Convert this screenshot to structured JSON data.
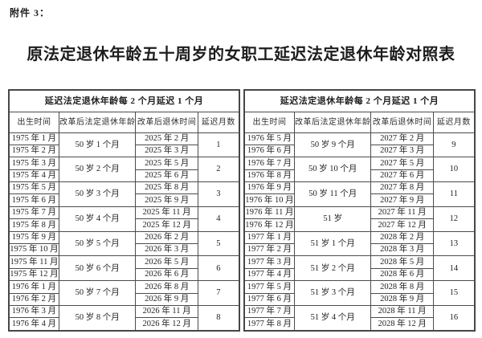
{
  "attachment_label": "附件 3：",
  "title": "原法定退休年龄五十周岁的女职工延迟法定退休年龄对照表",
  "table": {
    "span_header": "延迟法定退休年龄每 2 个月延迟 1 个月",
    "columns": [
      "出生时间",
      "改革后法定退休年龄",
      "改革后退休时间",
      "延迟月数"
    ],
    "left_groups": [
      {
        "births": [
          "1975 年 1 月",
          "1975 年 2 月"
        ],
        "age": "50 岁 1 个月",
        "retire": [
          "2025 年 2 月",
          "2025 年 3 月"
        ],
        "delay": "1"
      },
      {
        "births": [
          "1975 年 3 月",
          "1975 年 4 月"
        ],
        "age": "50 岁 2 个月",
        "retire": [
          "2025 年 5 月",
          "2025 年 6 月"
        ],
        "delay": "2"
      },
      {
        "births": [
          "1975 年 5 月",
          "1975 年 6 月"
        ],
        "age": "50 岁 3 个月",
        "retire": [
          "2025 年 8 月",
          "2025 年 9 月"
        ],
        "delay": "3"
      },
      {
        "births": [
          "1975 年 7 月",
          "1975 年 8 月"
        ],
        "age": "50 岁 4 个月",
        "retire": [
          "2025 年 11 月",
          "2025 年 12 月"
        ],
        "delay": "4"
      },
      {
        "births": [
          "1975 年 9 月",
          "1975 年 10 月"
        ],
        "age": "50 岁 5 个月",
        "retire": [
          "2026 年 2 月",
          "2026 年 3 月"
        ],
        "delay": "5"
      },
      {
        "births": [
          "1975 年 11 月",
          "1975 年 12 月"
        ],
        "age": "50 岁 6 个月",
        "retire": [
          "2026 年 5 月",
          "2026 年 6 月"
        ],
        "delay": "6"
      },
      {
        "births": [
          "1976 年 1 月",
          "1976 年 2 月"
        ],
        "age": "50 岁 7 个月",
        "retire": [
          "2026 年 8 月",
          "2026 年 9 月"
        ],
        "delay": "7"
      },
      {
        "births": [
          "1976 年 3 月",
          "1976 年 4 月"
        ],
        "age": "50 岁 8 个月",
        "retire": [
          "2026 年 11 月",
          "2026 年 12 月"
        ],
        "delay": "8"
      }
    ],
    "right_groups": [
      {
        "births": [
          "1976 年 5 月",
          "1976 年 6 月"
        ],
        "age": "50 岁 9 个月",
        "retire": [
          "2027 年 2 月",
          "2027 年 3 月"
        ],
        "delay": "9"
      },
      {
        "births": [
          "1976 年 7 月",
          "1976 年 8 月"
        ],
        "age": "50 岁 10 个月",
        "retire": [
          "2027 年 5 月",
          "2027 年 6 月"
        ],
        "delay": "10"
      },
      {
        "births": [
          "1976 年 9 月",
          "1976 年 10 月"
        ],
        "age": "50 岁 11 个月",
        "retire": [
          "2027 年 8 月",
          "2027 年 9 月"
        ],
        "delay": "11"
      },
      {
        "births": [
          "1976 年 11 月",
          "1976 年 12 月"
        ],
        "age": "51 岁",
        "retire": [
          "2027 年 11 月",
          "2027 年 12 月"
        ],
        "delay": "12"
      },
      {
        "births": [
          "1977 年 1 月",
          "1977 年 2 月"
        ],
        "age": "51 岁 1 个月",
        "retire": [
          "2028 年 2 月",
          "2028 年 3 月"
        ],
        "delay": "13"
      },
      {
        "births": [
          "1977 年 3 月",
          "1977 年 4 月"
        ],
        "age": "51 岁 2 个月",
        "retire": [
          "2028 年 5 月",
          "2028 年 6 月"
        ],
        "delay": "14"
      },
      {
        "births": [
          "1977 年 5 月",
          "1977 年 6 月"
        ],
        "age": "51 岁 3 个月",
        "retire": [
          "2028 年 8 月",
          "2028 年 9 月"
        ],
        "delay": "15"
      },
      {
        "births": [
          "1977 年 7 月",
          "1977 年 8 月"
        ],
        "age": "51 岁 4 个月",
        "retire": [
          "2028 年 11 月",
          "2028 年 12 月"
        ],
        "delay": "16"
      }
    ]
  }
}
